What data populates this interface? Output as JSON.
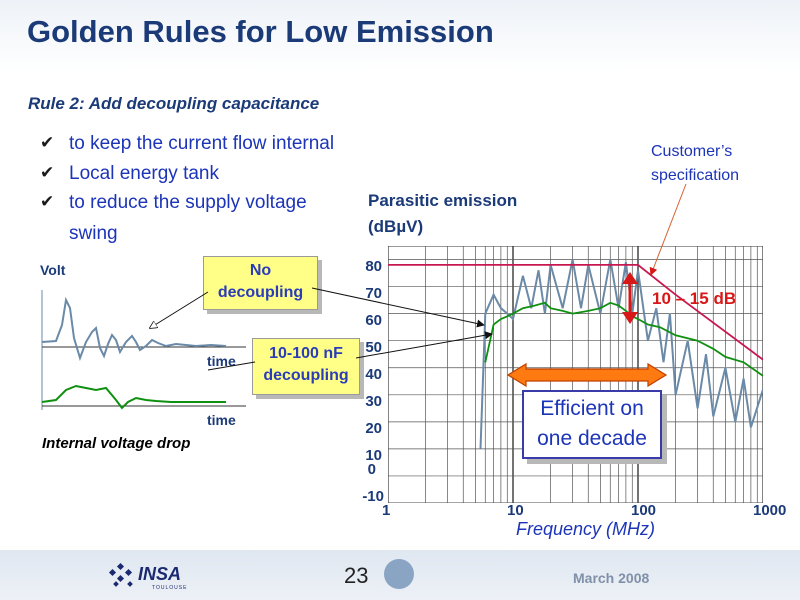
{
  "title": "Golden Rules for Low Emission",
  "rule": "Rule 2: Add decoupling capacitance",
  "bullets": [
    "to keep the current flow internal",
    "Local energy tank",
    "to reduce the supply voltage",
    "swing"
  ],
  "voltage_plot": {
    "y_label": "Volt",
    "time_label_top": "time",
    "time_label_bottom": "time",
    "caption": "Internal voltage drop"
  },
  "callouts": {
    "no_decoupling": [
      "No",
      "decoupling"
    ],
    "decoupling": [
      "10-100 nF",
      "decoupling"
    ],
    "efficient": [
      "Efficient on",
      "one decade"
    ]
  },
  "chart": {
    "title_line1": "Parasitic emission",
    "title_line2": "(dBµV)",
    "y_ticks": [
      "80",
      "70",
      "60",
      "50",
      "40",
      "30",
      "20",
      "10",
      "0",
      "-10"
    ],
    "x_ticks": [
      "1",
      "10",
      "100",
      "1000"
    ],
    "x_label": "Frequency (MHz)",
    "spec_label": [
      "Customer’s",
      "specification"
    ],
    "margin_label": "10 – 15 dB"
  },
  "chart_data": {
    "type": "line",
    "x_scale": "log",
    "xlim": [
      1,
      1000
    ],
    "ylim": [
      -10,
      85
    ],
    "xlabel": "Frequency (MHz)",
    "ylabel": "Parasitic emission (dBµV)",
    "series": [
      {
        "color": "#6a8aa8",
        "x": [
          5.5,
          6,
          7,
          8,
          9,
          10,
          12,
          14,
          16,
          18,
          20,
          25,
          30,
          35,
          40,
          50,
          60,
          70,
          80,
          90,
          100,
          120,
          140,
          160,
          180,
          200,
          250,
          300,
          350,
          400,
          500,
          600,
          700,
          800,
          1000
        ],
        "y": [
          10,
          60,
          67,
          62,
          60,
          58,
          74,
          62,
          76,
          60,
          78,
          62,
          80,
          62,
          78,
          60,
          80,
          62,
          79,
          60,
          76,
          50,
          62,
          42,
          60,
          30,
          50,
          25,
          45,
          22,
          40,
          20,
          36,
          18,
          32
        ]
      },
      {
        "color": "#109010",
        "x": [
          6,
          7,
          8,
          9,
          10,
          12,
          15,
          18,
          20,
          25,
          30,
          40,
          50,
          60,
          70,
          80,
          90,
          100,
          120,
          150,
          200,
          300,
          400,
          500,
          700,
          1000
        ],
        "y": [
          42,
          56,
          58,
          59,
          60,
          62,
          63,
          64,
          62,
          61,
          60,
          61,
          62,
          64,
          63,
          61,
          59,
          58,
          56,
          55,
          52,
          50,
          47,
          44,
          42,
          37
        ]
      },
      {
        "color": "#c81850",
        "x": [
          1,
          100,
          200,
          1000
        ],
        "y": [
          78,
          78,
          67,
          43
        ]
      }
    ]
  },
  "footer": {
    "page_number": "23",
    "date": "March 2008",
    "logo": "INSA",
    "logo_sub": "TOULOUSE"
  },
  "colors": {
    "title": "#1b3a78",
    "bullets": "#1c34b8",
    "callout_fill": "#ffff88",
    "margin": "#d81818",
    "arrow_fill": "#ff7a10",
    "spec_line": "#c81850",
    "emission": "#6a8aa8",
    "decoupled": "#109010"
  }
}
